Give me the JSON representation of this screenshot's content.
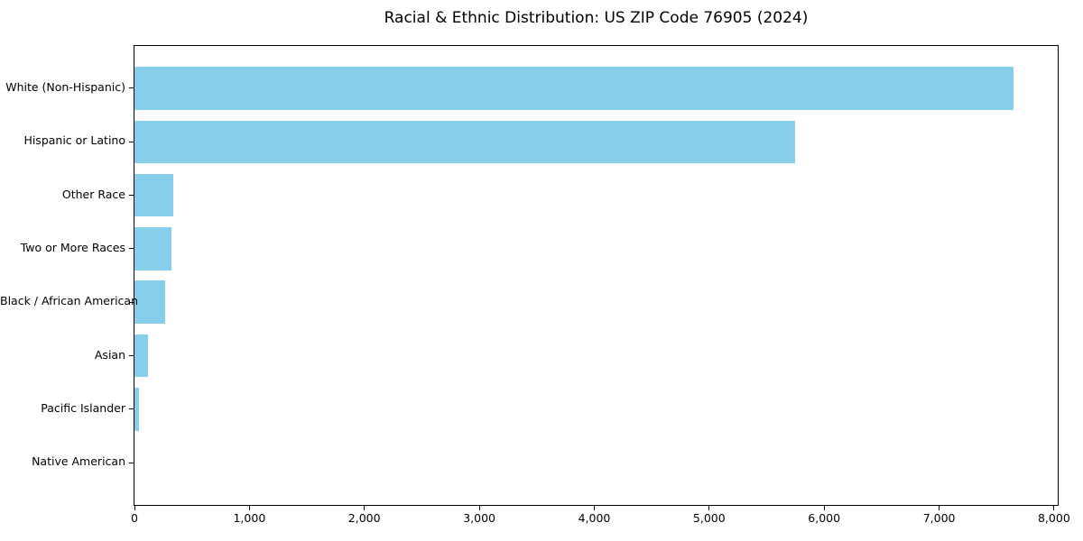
{
  "chart_data": {
    "type": "bar",
    "orientation": "horizontal",
    "title": "Racial & Ethnic Distribution: US ZIP Code 76905 (2024)",
    "categories": [
      "White (Non-Hispanic)",
      "Hispanic or Latino",
      "Other Race",
      "Two or More Races",
      "Black / African American",
      "Asian",
      "Pacific Islander",
      "Native American"
    ],
    "values": [
      7650,
      5750,
      335,
      325,
      270,
      115,
      40,
      0
    ],
    "xlabel": "",
    "ylabel": "",
    "xlim": [
      0,
      8032
    ],
    "xticks": [
      0,
      1000,
      2000,
      3000,
      4000,
      5000,
      6000,
      7000,
      8000
    ],
    "xtick_labels": [
      "0",
      "1,000",
      "2,000",
      "3,000",
      "4,000",
      "5,000",
      "6,000",
      "7,000",
      "8,000"
    ],
    "bar_color": "#87CEEB",
    "grid": false,
    "legend_position": "none"
  }
}
